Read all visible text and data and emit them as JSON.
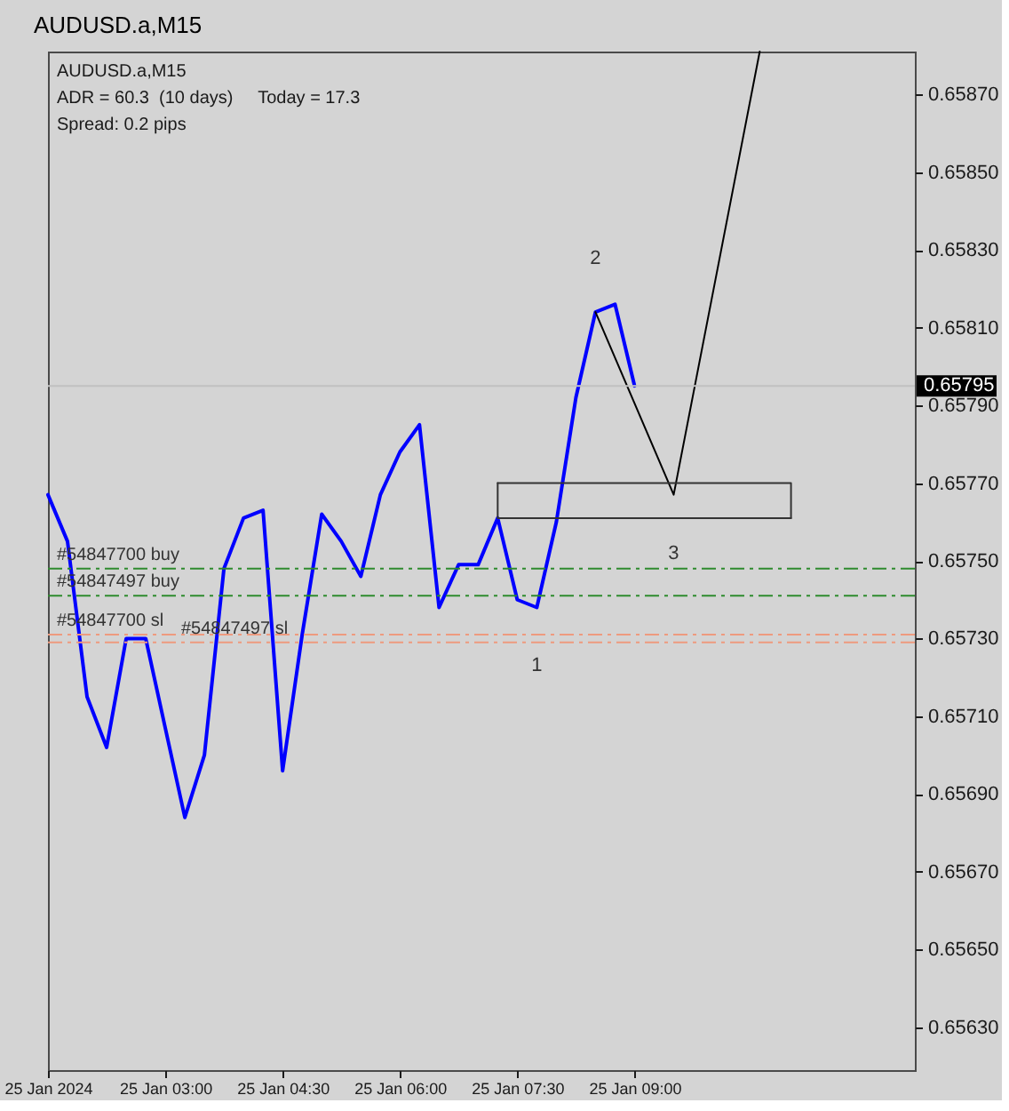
{
  "chart_data": {
    "type": "line",
    "title": "AUDUSD.a,M15",
    "subtitle": "AUDUSD.a,M15",
    "annotations": [
      "ADR = 60.3  (10 days)     Today = 17.3",
      "Spread: 0.2 pips",
      {
        "text": "1",
        "x": "2024-01-25T07:45",
        "y": 0.65738
      },
      {
        "text": "2",
        "x": "2024-01-25T08:30",
        "y": 0.65814
      },
      {
        "text": "3",
        "x": "2024-01-25T09:30",
        "y": 0.65767
      }
    ],
    "x": [
      "2024-01-25T01:30",
      "2024-01-25T01:45",
      "2024-01-25T02:00",
      "2024-01-25T02:15",
      "2024-01-25T02:30",
      "2024-01-25T02:45",
      "2024-01-25T03:00",
      "2024-01-25T03:15",
      "2024-01-25T03:30",
      "2024-01-25T03:45",
      "2024-01-25T04:00",
      "2024-01-25T04:15",
      "2024-01-25T04:30",
      "2024-01-25T04:45",
      "2024-01-25T05:00",
      "2024-01-25T05:15",
      "2024-01-25T05:30",
      "2024-01-25T05:45",
      "2024-01-25T06:00",
      "2024-01-25T06:15",
      "2024-01-25T06:30",
      "2024-01-25T06:45",
      "2024-01-25T07:00",
      "2024-01-25T07:15",
      "2024-01-25T07:30",
      "2024-01-25T07:45",
      "2024-01-25T08:00",
      "2024-01-25T08:15",
      "2024-01-25T08:30",
      "2024-01-25T08:45",
      "2024-01-25T09:00"
    ],
    "xlim": [
      "2024-01-25T01:30",
      "2024-01-25T12:35"
    ],
    "xticks": [
      {
        "value": "2024-01-25T01:30",
        "label": "25 Jan 2024"
      },
      {
        "value": "2024-01-25T03:00",
        "label": "25 Jan 03:00"
      },
      {
        "value": "2024-01-25T04:30",
        "label": "25 Jan 04:30"
      },
      {
        "value": "2024-01-25T06:00",
        "label": "25 Jan 06:00"
      },
      {
        "value": "2024-01-25T07:30",
        "label": "25 Jan 07:30"
      },
      {
        "value": "2024-01-25T09:00",
        "label": "25 Jan 09:00"
      }
    ],
    "ylim": [
      0.65619,
      0.65881
    ],
    "yticks": [
      {
        "value": 0.6563,
        "label": "0.65630"
      },
      {
        "value": 0.6565,
        "label": "0.65650"
      },
      {
        "value": 0.6567,
        "label": "0.65670"
      },
      {
        "value": 0.6569,
        "label": "0.65690"
      },
      {
        "value": 0.6571,
        "label": "0.65710"
      },
      {
        "value": 0.6573,
        "label": "0.65730"
      },
      {
        "value": 0.6575,
        "label": "0.65750"
      },
      {
        "value": 0.6577,
        "label": "0.65770"
      },
      {
        "value": 0.6579,
        "label": "0.65790"
      },
      {
        "value": 0.6581,
        "label": "0.65810"
      },
      {
        "value": 0.6583,
        "label": "0.65830"
      },
      {
        "value": 0.6585,
        "label": "0.65850"
      },
      {
        "value": 0.6587,
        "label": "0.65870"
      }
    ],
    "series": [
      {
        "color": "#0000ff",
        "values": [
          0.65767,
          0.65755,
          0.65715,
          0.65702,
          0.6573,
          0.6573,
          0.65707,
          0.65684,
          0.657,
          0.65748,
          0.65761,
          0.65763,
          0.65696,
          0.65731,
          0.65762,
          0.65755,
          0.65746,
          0.65767,
          0.65778,
          0.65785,
          0.65738,
          0.65749,
          0.65749,
          0.65761,
          0.6574,
          0.65738,
          0.6576,
          0.65792,
          0.65814,
          0.65816,
          0.65795
        ]
      },
      {
        "type": "line",
        "color": "#000000",
        "x": [
          "2024-01-25T08:30",
          "2024-01-25T09:30",
          "2024-01-25T10:36"
        ],
        "values": [
          0.65814,
          0.65767,
          0.65881
        ]
      },
      {
        "type": "line",
        "color": "#333333",
        "x": [
          "2024-01-25T07:15",
          "2024-01-25T11:00",
          "2024-01-25T11:00"
        ],
        "values": [
          0.6577,
          0.6577,
          0.65761
        ]
      },
      {
        "type": "line",
        "color": "#333333",
        "x": [
          "2024-01-25T07:15",
          "2024-01-25T07:15",
          "2024-01-25T11:00"
        ],
        "values": [
          0.6577,
          0.65761,
          0.65761
        ]
      }
    ],
    "ref_lines": [
      {
        "axis": "y",
        "value": 0.65795,
        "label": "0.65795",
        "color": "#c0c0c0",
        "line_style": "solid"
      },
      {
        "axis": "y",
        "value": 0.65748,
        "label": "#54847700 buy",
        "color": "#2e8b2e",
        "line_style": "dashed"
      },
      {
        "axis": "y",
        "value": 0.65741,
        "label": "#54847497 buy",
        "color": "#2e8b2e",
        "line_style": "dashed"
      },
      {
        "axis": "y",
        "value": 0.65731,
        "label": "#54847700 sl",
        "color": "#ee9a7e",
        "line_style": "dashed"
      },
      {
        "axis": "y",
        "value": 0.65729,
        "label": "#54847497 sl",
        "color": "#ee9a7e",
        "line_style": "dashed"
      }
    ],
    "grid": false,
    "marker": "none",
    "line_style": "solid"
  }
}
